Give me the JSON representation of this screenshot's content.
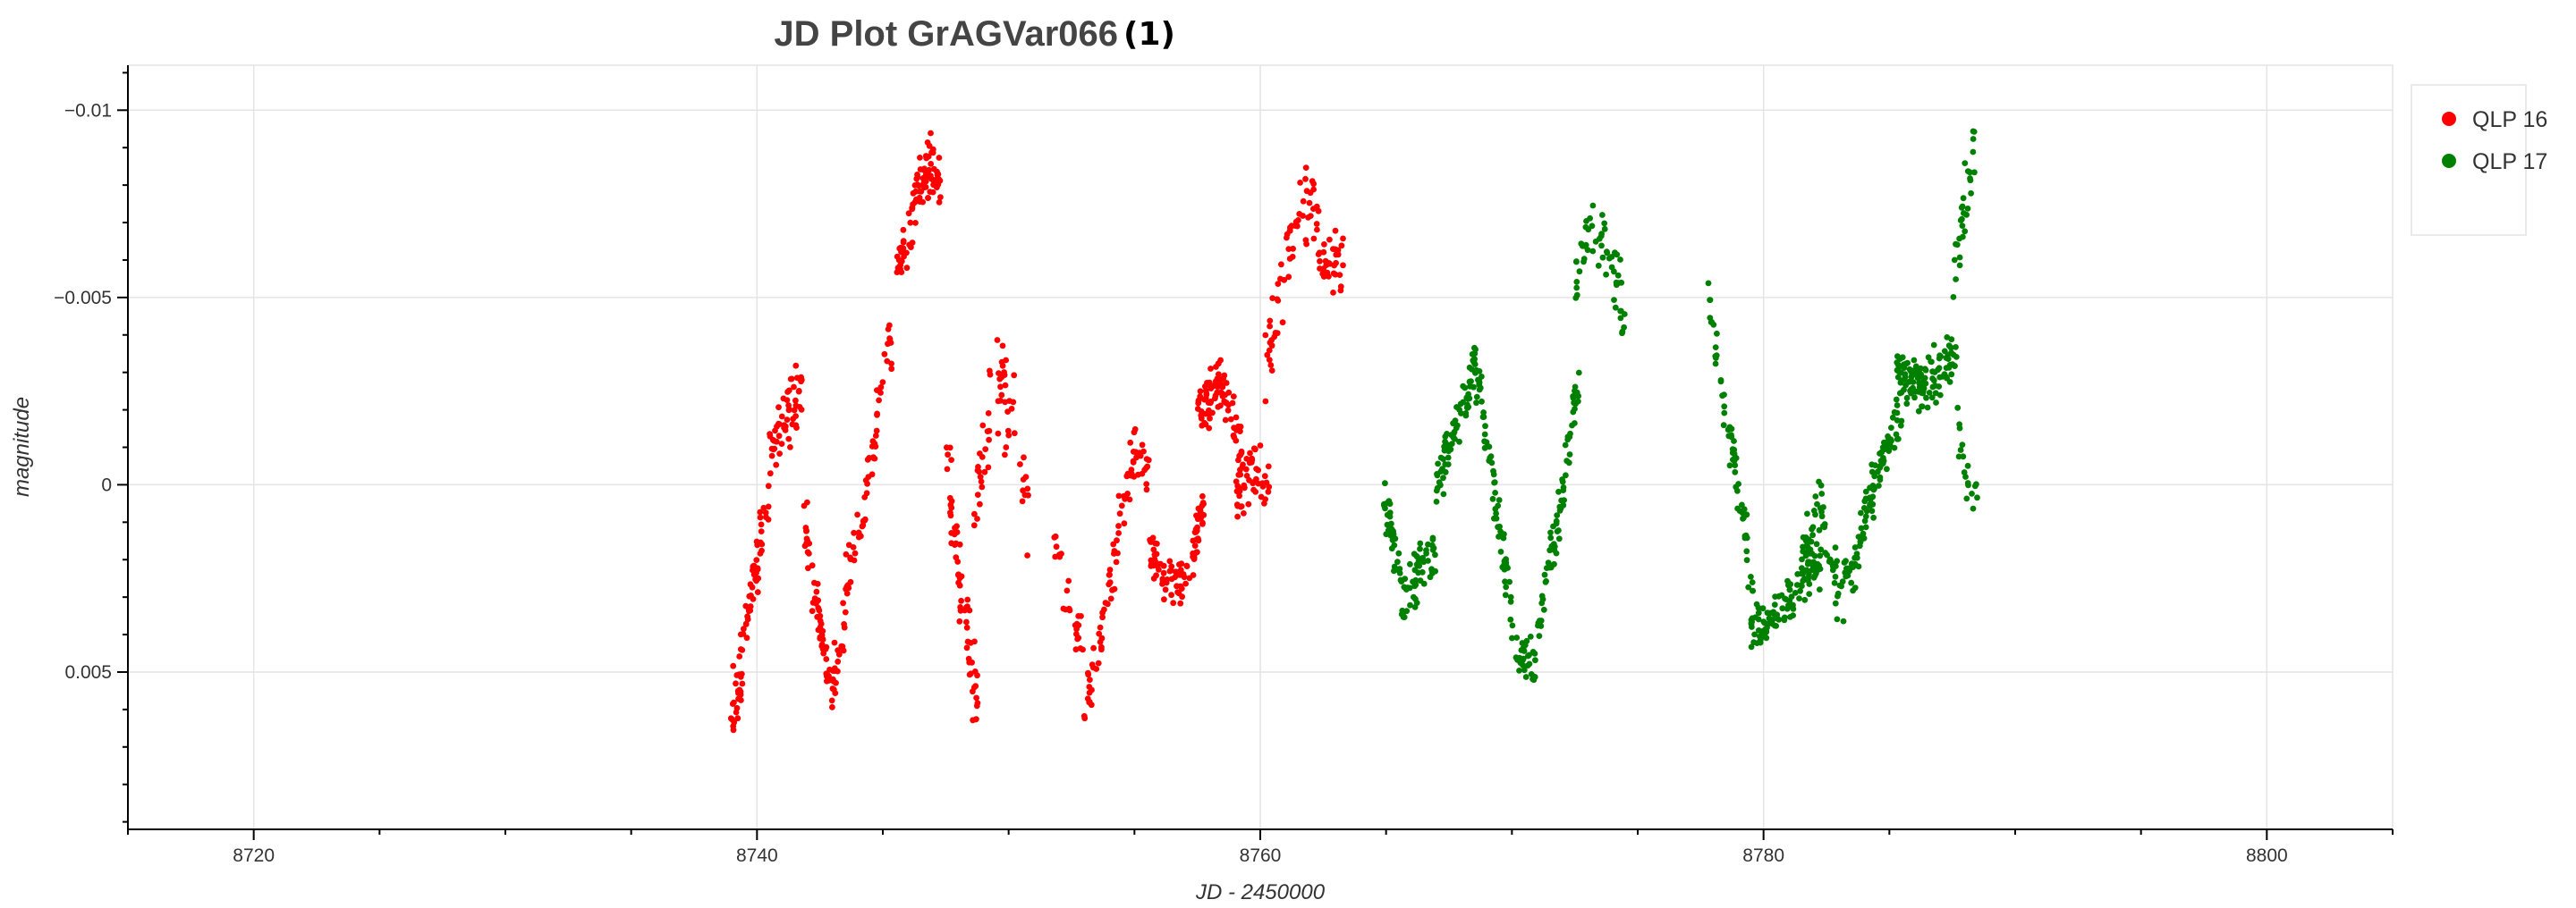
{
  "chart_data": {
    "type": "scatter",
    "title": "JD Plot GrAGVar066",
    "title_suffix": "(1)",
    "xlabel": "JD - 2450000",
    "ylabel": "magnitude",
    "xlim": [
      8715,
      8805
    ],
    "ylim": [
      0.0092,
      -0.0112
    ],
    "y_inverted": true,
    "grid": true,
    "legend_position": "top-right",
    "x_ticks": [
      8720,
      8740,
      8760,
      8780,
      8800
    ],
    "x_tick_labels": [
      "8720",
      "8740",
      "8760",
      "8780",
      "8800"
    ],
    "y_ticks": [
      -0.01,
      -0.005,
      0,
      0.005
    ],
    "y_tick_labels": [
      "−0.01",
      "−0.005",
      "0",
      "0.005"
    ],
    "series": [
      {
        "name": "QLP 16",
        "color": "#ff0000",
        "segments": [
          {
            "x0": 8738.9,
            "x1": 8740.5,
            "anchors": [
              [
                8738.9,
                0.0062
              ],
              [
                8739.3,
                0.0052
              ],
              [
                8739.8,
                0.0026
              ],
              [
                8740.5,
                0.0005
              ]
            ],
            "spread": 0.0013,
            "n": 80
          },
          {
            "x0": 8740.5,
            "x1": 8741.8,
            "anchors": [
              [
                8740.5,
                -0.0008
              ],
              [
                8741.0,
                -0.0014
              ],
              [
                8741.5,
                -0.0022
              ],
              [
                8741.8,
                -0.0028
              ]
            ],
            "spread": 0.0013,
            "n": 55
          },
          {
            "x0": 8741.8,
            "x1": 8742.6,
            "anchors": [
              [
                8741.8,
                0.0003
              ],
              [
                8742.2,
                0.0025
              ],
              [
                8742.6,
                0.004
              ]
            ],
            "spread": 0.0011,
            "n": 40
          },
          {
            "x0": 8742.6,
            "x1": 8743.5,
            "anchors": [
              [
                8742.6,
                0.0045
              ],
              [
                8743.0,
                0.0055
              ],
              [
                8743.5,
                0.0038
              ]
            ],
            "spread": 0.0012,
            "n": 40
          },
          {
            "x0": 8743.5,
            "x1": 8745.4,
            "anchors": [
              [
                8743.5,
                0.0028
              ],
              [
                8744.3,
                0.0005
              ],
              [
                8745.0,
                -0.003
              ],
              [
                8745.4,
                -0.004
              ]
            ],
            "spread": 0.0012,
            "n": 60
          },
          {
            "x0": 8745.5,
            "x1": 8747.3,
            "anchors": [
              [
                8745.5,
                -0.0055
              ],
              [
                8746.3,
                -0.0075
              ],
              [
                8746.9,
                -0.0085
              ],
              [
                8747.3,
                -0.0082
              ]
            ],
            "spread": 0.0011,
            "n": 95
          },
          {
            "x0": 8747.5,
            "x1": 8748.8,
            "anchors": [
              [
                8747.5,
                -0.001
              ],
              [
                8748.1,
                0.003
              ],
              [
                8748.8,
                0.006
              ]
            ],
            "spread": 0.0016,
            "n": 60
          },
          {
            "x0": 8748.6,
            "x1": 8750.8,
            "anchors": [
              [
                8748.6,
                0.001
              ],
              [
                8749.4,
                -0.003
              ],
              [
                8750.1,
                -0.002
              ],
              [
                8750.8,
                0.001
              ]
            ],
            "spread": 0.002,
            "n": 60
          },
          {
            "x0": 8751.7,
            "x1": 8753.0,
            "anchors": [
              [
                8751.7,
                0.001
              ],
              [
                8752.3,
                0.003
              ],
              [
                8753.0,
                0.0045
              ]
            ],
            "spread": 0.001,
            "n": 25
          },
          {
            "x0": 8753.0,
            "x1": 8755.6,
            "anchors": [
              [
                8753.0,
                0.006
              ],
              [
                8753.7,
                0.004
              ],
              [
                8754.4,
                0.001
              ],
              [
                8755.0,
                -0.001
              ],
              [
                8755.6,
                -0.0003
              ]
            ],
            "spread": 0.0011,
            "n": 80
          },
          {
            "x0": 8755.6,
            "x1": 8757.8,
            "anchors": [
              [
                8755.6,
                0.0015
              ],
              [
                8756.3,
                0.0025
              ],
              [
                8757.0,
                0.0025
              ],
              [
                8757.8,
                0.0005
              ]
            ],
            "spread": 0.001,
            "n": 95
          },
          {
            "x0": 8757.5,
            "x1": 8759.3,
            "anchors": [
              [
                8757.5,
                -0.0018
              ],
              [
                8758.4,
                -0.0028
              ],
              [
                8759.3,
                -0.001
              ]
            ],
            "spread": 0.0012,
            "n": 85
          },
          {
            "x0": 8759.0,
            "x1": 8760.4,
            "anchors": [
              [
                8759.0,
                0.0002
              ],
              [
                8759.7,
                -0.0004
              ],
              [
                8760.4,
                0.0
              ]
            ],
            "spread": 0.0012,
            "n": 50
          },
          {
            "x0": 8760.2,
            "x1": 8763.3,
            "anchors": [
              [
                8760.2,
                -0.003
              ],
              [
                8761.0,
                -0.006
              ],
              [
                8761.8,
                -0.008
              ],
              [
                8762.5,
                -0.006
              ],
              [
                8763.3,
                -0.006
              ]
            ],
            "spread": 0.0017,
            "n": 95
          }
        ]
      },
      {
        "name": "QLP 17",
        "color": "#008000",
        "segments": [
          {
            "x0": 8764.9,
            "x1": 8767.0,
            "anchors": [
              [
                8764.9,
                0.0005
              ],
              [
                8765.7,
                0.003
              ],
              [
                8766.5,
                0.002
              ],
              [
                8767.0,
                0.002
              ]
            ],
            "spread": 0.0011,
            "n": 85
          },
          {
            "x0": 8767.0,
            "x1": 8768.8,
            "anchors": [
              [
                8767.0,
                0.0
              ],
              [
                8767.8,
                -0.0015
              ],
              [
                8768.5,
                -0.003
              ],
              [
                8768.8,
                -0.0025
              ]
            ],
            "spread": 0.0011,
            "n": 85
          },
          {
            "x0": 8768.8,
            "x1": 8771.0,
            "anchors": [
              [
                8768.8,
                -0.002
              ],
              [
                8769.5,
                0.001
              ],
              [
                8770.2,
                0.0045
              ],
              [
                8771.0,
                0.005
              ]
            ],
            "spread": 0.0011,
            "n": 85
          },
          {
            "x0": 8771.0,
            "x1": 8772.7,
            "anchors": [
              [
                8771.0,
                0.004
              ],
              [
                8771.8,
                0.001
              ],
              [
                8772.7,
                -0.003
              ]
            ],
            "spread": 0.0011,
            "n": 70
          },
          {
            "x0": 8772.5,
            "x1": 8774.6,
            "anchors": [
              [
                8772.5,
                -0.0055
              ],
              [
                8773.2,
                -0.007
              ],
              [
                8773.9,
                -0.006
              ],
              [
                8774.6,
                -0.004
              ]
            ],
            "spread": 0.0015,
            "n": 55
          },
          {
            "x0": 8777.8,
            "x1": 8779.6,
            "anchors": [
              [
                8777.8,
                -0.005
              ],
              [
                8778.5,
                -0.002
              ],
              [
                8779.2,
                0.001
              ],
              [
                8779.6,
                0.003
              ]
            ],
            "spread": 0.001,
            "n": 60
          },
          {
            "x0": 8779.5,
            "x1": 8782.3,
            "anchors": [
              [
                8779.5,
                0.004
              ],
              [
                8780.3,
                0.0035
              ],
              [
                8781.2,
                0.003
              ],
              [
                8782.3,
                0.002
              ]
            ],
            "spread": 0.0009,
            "n": 110
          },
          {
            "x0": 8781.5,
            "x1": 8783.8,
            "anchors": [
              [
                8781.5,
                0.002
              ],
              [
                8782.3,
                0.0005
              ],
              [
                8783.0,
                0.003
              ],
              [
                8783.8,
                0.002
              ]
            ],
            "spread": 0.0011,
            "n": 85
          },
          {
            "x0": 8783.8,
            "x1": 8785.5,
            "anchors": [
              [
                8783.8,
                0.0015
              ],
              [
                8784.6,
                -0.0005
              ],
              [
                8785.5,
                -0.002
              ]
            ],
            "spread": 0.0011,
            "n": 75
          },
          {
            "x0": 8785.3,
            "x1": 8787.7,
            "anchors": [
              [
                8785.3,
                -0.003
              ],
              [
                8786.2,
                -0.0025
              ],
              [
                8787.0,
                -0.003
              ],
              [
                8787.7,
                -0.0035
              ]
            ],
            "spread": 0.001,
            "n": 115
          },
          {
            "x0": 8787.5,
            "x1": 8788.4,
            "anchors": [
              [
                8787.5,
                -0.005
              ],
              [
                8788.0,
                -0.0075
              ],
              [
                8788.4,
                -0.009
              ]
            ],
            "spread": 0.0014,
            "n": 30
          },
          {
            "x0": 8787.7,
            "x1": 8788.5,
            "anchors": [
              [
                8787.7,
                -0.0015
              ],
              [
                8788.1,
                0.0
              ],
              [
                8788.5,
                0.0005
              ]
            ],
            "spread": 0.001,
            "n": 18
          }
        ]
      }
    ]
  }
}
